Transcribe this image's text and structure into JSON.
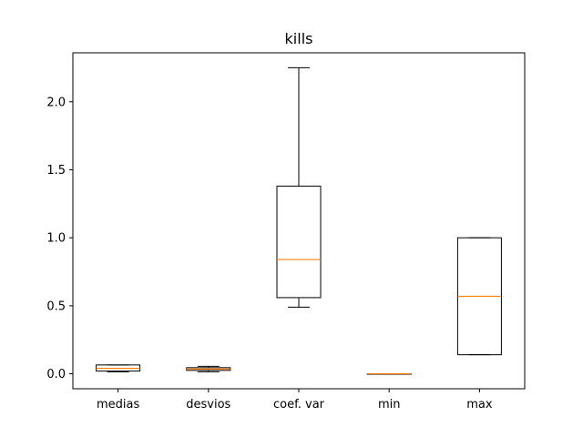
{
  "chart_data": {
    "type": "boxplot",
    "title": "kills",
    "xlabel": "",
    "ylabel": "",
    "ylim": [
      -0.11,
      2.36
    ],
    "yticks": [
      0.0,
      0.5,
      1.0,
      1.5,
      2.0
    ],
    "ytick_labels": [
      "0.0",
      "0.5",
      "1.0",
      "1.5",
      "2.0"
    ],
    "grid": false,
    "box_color": "#000000",
    "median_color": "#ff7f0e",
    "categories": [
      "medias",
      "desvios",
      "coef. var",
      "min",
      "max"
    ],
    "boxes": [
      {
        "category": "medias",
        "whisker_low": 0.015,
        "q1": 0.02,
        "median": 0.04,
        "q3": 0.065,
        "whisker_high": 0.065
      },
      {
        "category": "desvios",
        "whisker_low": 0.015,
        "q1": 0.025,
        "median": 0.035,
        "q3": 0.045,
        "whisker_high": 0.055
      },
      {
        "category": "coef. var",
        "whisker_low": 0.49,
        "q1": 0.56,
        "median": 0.84,
        "q3": 1.38,
        "whisker_high": 2.25
      },
      {
        "category": "min",
        "whisker_low": 0.0,
        "q1": 0.0,
        "median": 0.0,
        "q3": 0.0,
        "whisker_high": 0.0
      },
      {
        "category": "max",
        "whisker_low": 0.14,
        "q1": 0.14,
        "median": 0.57,
        "q3": 1.0,
        "whisker_high": 1.0
      }
    ]
  }
}
